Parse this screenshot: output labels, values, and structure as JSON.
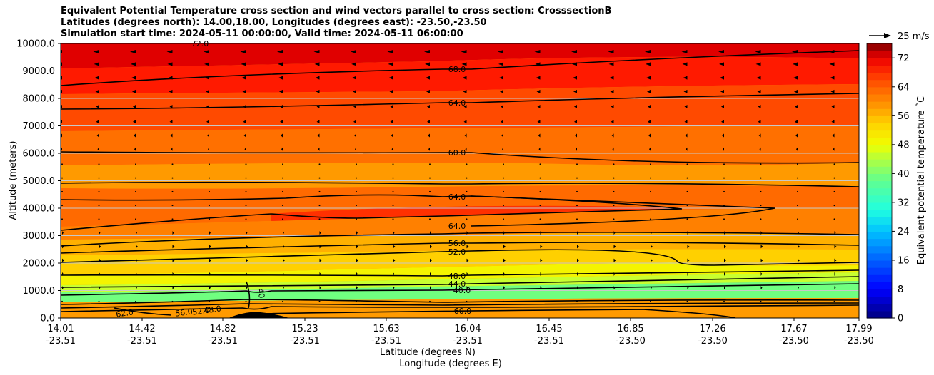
{
  "chart_data": {
    "type": "contour",
    "title_lines": [
      "Equivalent Potential Temperature cross section and wind vectors parallel to cross section: CrosssectionB",
      "Latitudes (degrees north): 14.00,18.00, Longitudes (degrees east): -23.50,-23.50",
      "Simulation start time: 2024-05-11 00:00:00, Valid time: 2024-05-11 06:00:00"
    ],
    "ylabel": "Altitude (meters)",
    "xlabel_lat": "Latitude (degrees N)",
    "xlabel_lon": "Longitude (degrees E)",
    "ylim": [
      0,
      10000
    ],
    "yticks": [
      "0.0",
      "1000.0",
      "2000.0",
      "3000.0",
      "4000.0",
      "5000.0",
      "6000.0",
      "7000.0",
      "8000.0",
      "9000.0",
      "10000.0"
    ],
    "xticks": [
      {
        "lat": "14.01",
        "lon": "-23.51"
      },
      {
        "lat": "14.42",
        "lon": "-23.51"
      },
      {
        "lat": "14.82",
        "lon": "-23.51"
      },
      {
        "lat": "15.23",
        "lon": "-23.51"
      },
      {
        "lat": "15.63",
        "lon": "-23.51"
      },
      {
        "lat": "16.04",
        "lon": "-23.51"
      },
      {
        "lat": "16.45",
        "lon": "-23.51"
      },
      {
        "lat": "16.85",
        "lon": "-23.50"
      },
      {
        "lat": "17.26",
        "lon": "-23.50"
      },
      {
        "lat": "17.67",
        "lon": "-23.50"
      },
      {
        "lat": "17.99",
        "lon": "-23.50"
      }
    ],
    "grid": "horizontal",
    "colorbar": {
      "label": "Equivalent potential temperature ˚C",
      "ticks": [
        "0",
        "8",
        "16",
        "24",
        "32",
        "40",
        "48",
        "56",
        "64",
        "72"
      ],
      "min": 0,
      "max": 76,
      "step": 2
    },
    "contour_labels": [
      {
        "text": "68.0",
        "alt": 9050
      },
      {
        "text": "64.0",
        "alt": 7850
      },
      {
        "text": "60.0",
        "alt": 6000
      },
      {
        "text": "64.0",
        "alt": 4400
      },
      {
        "text": "64.0",
        "alt": 3350
      },
      {
        "text": "56.0",
        "alt": 2700
      },
      {
        "text": "52.0",
        "alt": 2400
      },
      {
        "text": "48.0",
        "alt": 1550
      },
      {
        "text": "44.0",
        "alt": 1250
      },
      {
        "text": "40.0",
        "alt": 1000
      },
      {
        "text": "60.0",
        "alt": 250
      },
      {
        "text": "72.0",
        "alt": 10000
      },
      {
        "text": "40",
        "alt": 850
      },
      {
        "text": "48.0",
        "alt": 300
      },
      {
        "text": "52.0",
        "alt": 250
      },
      {
        "text": "56.0",
        "alt": 200
      },
      {
        "text": "62.0",
        "alt": 150
      }
    ],
    "wind_key": {
      "label": "25 m/s"
    }
  }
}
